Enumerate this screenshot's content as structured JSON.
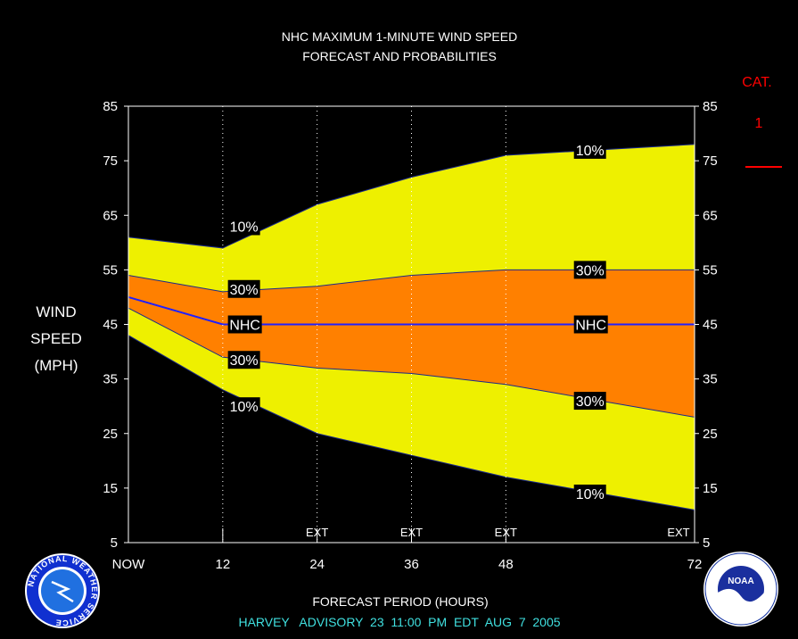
{
  "chart_data": {
    "type": "area",
    "title_line1": "NHC MAXIMUM 1-MINUTE WIND SPEED",
    "title_line2": "FORECAST AND PROBABILITIES",
    "ylabel_lines": [
      "WIND",
      "SPEED",
      "(MPH)"
    ],
    "xlabel": "FORECAST PERIOD (HOURS)",
    "advisory": "HARVEY   ADVISORY  23  11:00  PM  EDT  AUG  7  2005",
    "ylim": [
      5,
      85
    ],
    "xlim": [
      0,
      72
    ],
    "y_ticks": [
      5,
      15,
      25,
      35,
      45,
      55,
      65,
      75,
      85
    ],
    "x_ticks": [
      {
        "x": 0,
        "label": "NOW"
      },
      {
        "x": 12,
        "label": "12"
      },
      {
        "x": 24,
        "label": "24"
      },
      {
        "x": 36,
        "label": "36"
      },
      {
        "x": 48,
        "label": "48"
      },
      {
        "x": 72,
        "label": "72"
      }
    ],
    "ext_labels": [
      {
        "x": 24,
        "label": "EXT"
      },
      {
        "x": 36,
        "label": "EXT"
      },
      {
        "x": 48,
        "label": "EXT"
      },
      {
        "x": 72,
        "label": "EXT"
      }
    ],
    "dotted_lines_x": [
      12,
      24,
      36,
      48
    ],
    "hours": [
      0,
      12,
      24,
      36,
      48,
      60,
      72
    ],
    "upper_10": [
      61,
      59,
      67,
      72,
      76,
      77,
      78
    ],
    "upper_30": [
      54,
      51,
      52,
      54,
      55,
      55,
      55
    ],
    "nhc": [
      50,
      45,
      45,
      45,
      45,
      45,
      45
    ],
    "lower_30": [
      48,
      39,
      37,
      36,
      34,
      31,
      28
    ],
    "lower_10": [
      43,
      33,
      25,
      21,
      17,
      14,
      11
    ],
    "curve_labels": [
      {
        "text": "10%",
        "x": 13,
        "y": 63
      },
      {
        "text": "30%",
        "x": 13,
        "y": 51.5
      },
      {
        "text": "NHC",
        "x": 13,
        "y": 45
      },
      {
        "text": "30%",
        "x": 13,
        "y": 38.5
      },
      {
        "text": "10%",
        "x": 13,
        "y": 30
      },
      {
        "text": "10%",
        "x": 57,
        "y": 77
      },
      {
        "text": "30%",
        "x": 57,
        "y": 55
      },
      {
        "text": "NHC",
        "x": 57,
        "y": 45
      },
      {
        "text": "30%",
        "x": 57,
        "y": 31
      },
      {
        "text": "10%",
        "x": 57,
        "y": 14
      }
    ],
    "category": {
      "heading": "CAT.",
      "value": "1",
      "threshold": 74
    },
    "colors": {
      "background": "#000000",
      "outer_band": "#eef000",
      "inner_band": "#ff8000",
      "nhc_line": "#2020ff",
      "category": "#ff0000",
      "advisory": "#40e0e0"
    }
  },
  "logos": {
    "nws": "NATIONAL WEATHER SERVICE",
    "noaa": "NOAA"
  }
}
